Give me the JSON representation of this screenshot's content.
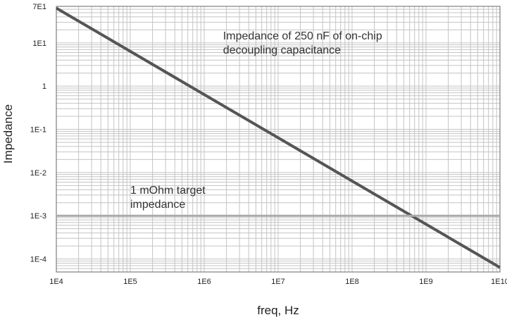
{
  "chart_data": {
    "type": "line",
    "xlabel": "freq, Hz",
    "ylabel": "Impedance",
    "xscale": "log",
    "yscale": "log",
    "xlim": [
      10000,
      10000000000
    ],
    "ylim": [
      5e-05,
      70
    ],
    "grid": true,
    "x_ticks": [
      {
        "value": 10000,
        "label": "1E4"
      },
      {
        "value": 100000,
        "label": "1E5"
      },
      {
        "value": 1000000,
        "label": "1E6"
      },
      {
        "value": 10000000,
        "label": "1E7"
      },
      {
        "value": 100000000,
        "label": "1E8"
      },
      {
        "value": 1000000000,
        "label": "1E9"
      },
      {
        "value": 10000000000,
        "label": "1E10"
      }
    ],
    "y_ticks": [
      {
        "value": 70,
        "label": "7E1"
      },
      {
        "value": 10,
        "label": "1E1"
      },
      {
        "value": 1,
        "label": "1"
      },
      {
        "value": 0.1,
        "label": "1E-1"
      },
      {
        "value": 0.01,
        "label": "1E-2"
      },
      {
        "value": 0.001,
        "label": "1E-3"
      },
      {
        "value": 0.0001,
        "label": "1E-4"
      }
    ],
    "series": [
      {
        "color": "#555555",
        "x": [
          10000,
          10000000000
        ],
        "y": [
          63.66,
          6.366e-05
        ]
      },
      {
        "color": "#aaaaaa",
        "x": [
          10000,
          10000000000
        ],
        "y": [
          0.001,
          0.001
        ]
      }
    ],
    "annotations": [
      {
        "lines": [
          "Impedance of 250 nF of on-chip",
          "decoupling capacitance"
        ],
        "x": 1800000,
        "y": 12
      },
      {
        "lines": [
          "1 mOhm target",
          "impedance"
        ],
        "x": 100000,
        "y": 0.0032
      }
    ]
  }
}
